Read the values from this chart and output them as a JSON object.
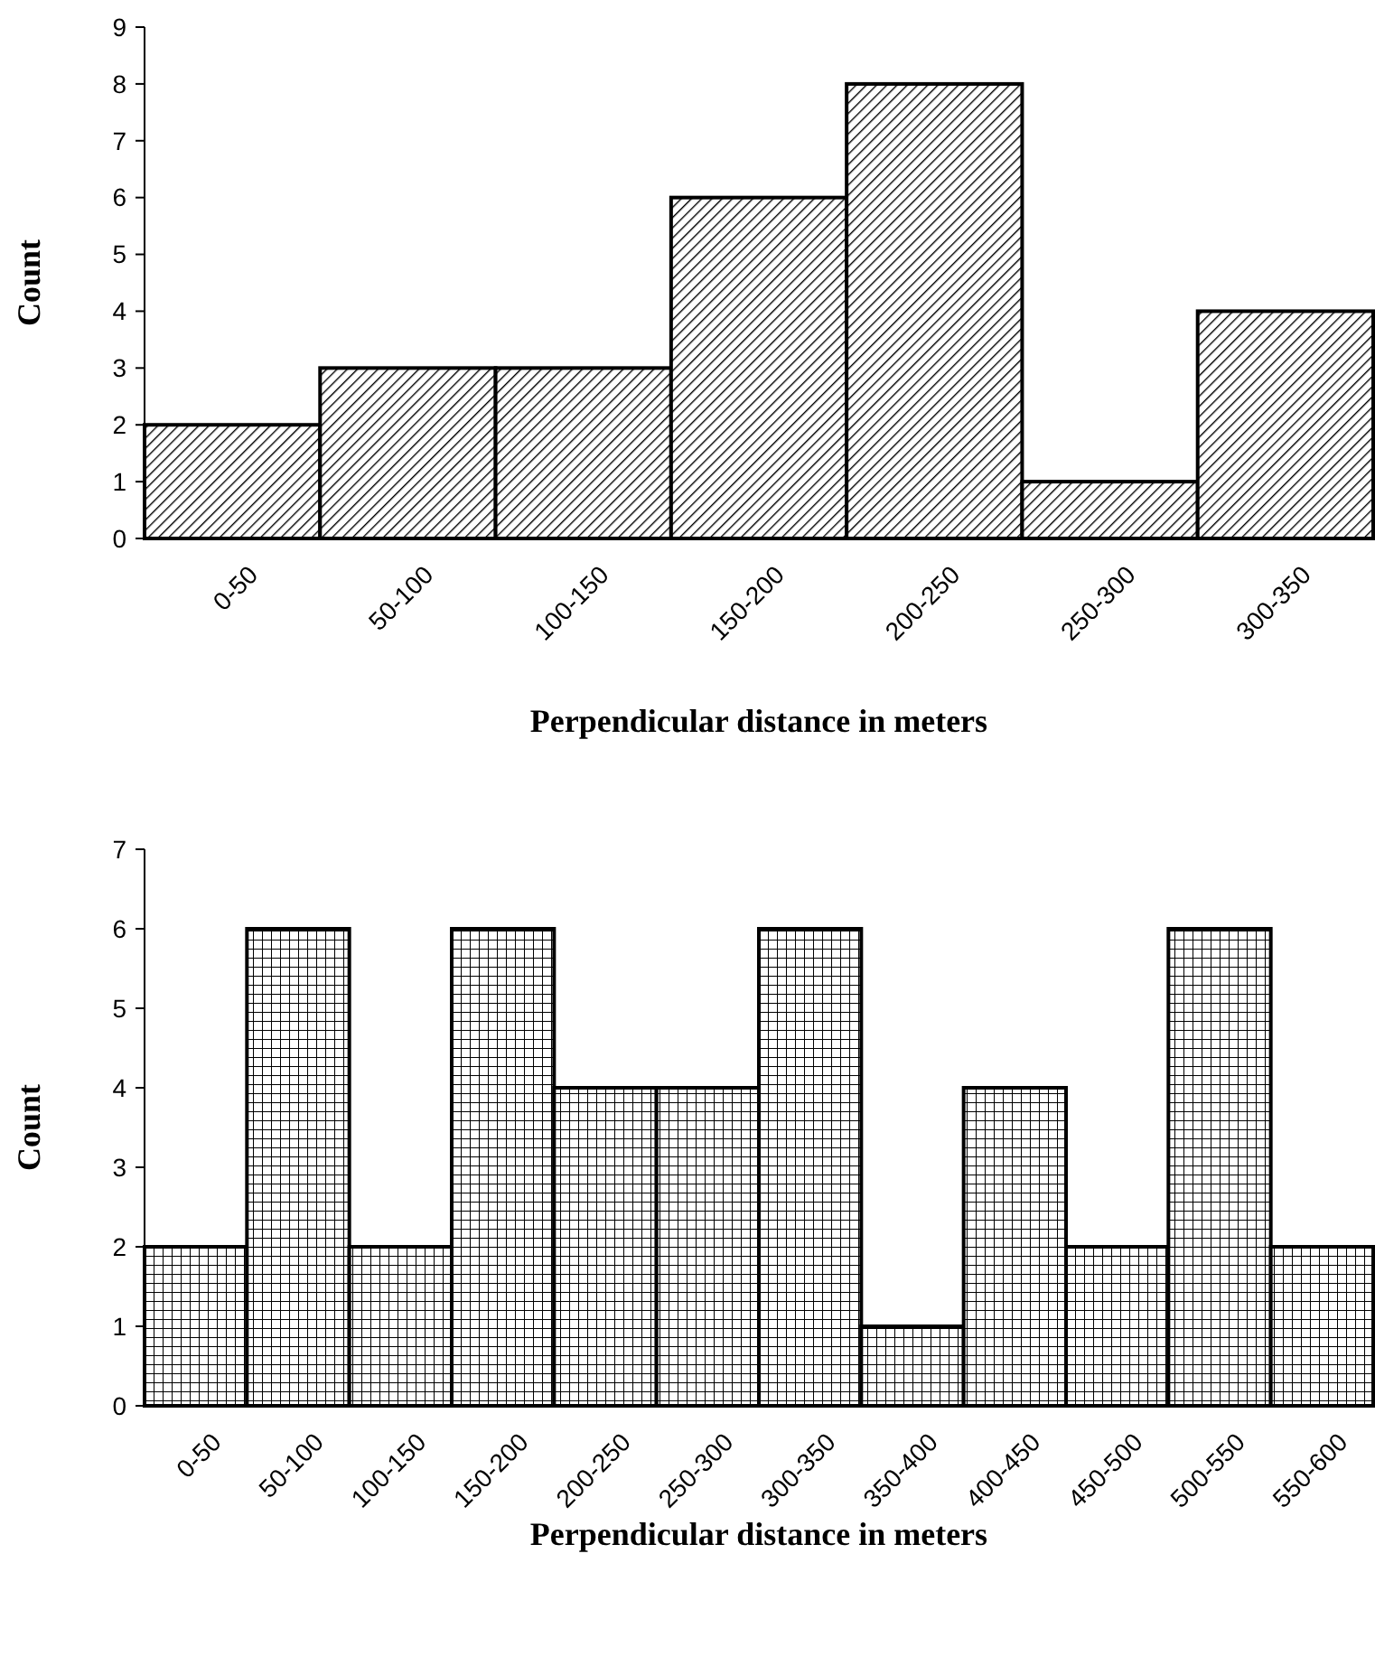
{
  "chart_data": [
    {
      "type": "bar",
      "categories": [
        "0-50",
        "50-100",
        "100-150",
        "150-200",
        "200-250",
        "250-300",
        "300-350"
      ],
      "values": [
        2,
        3,
        3,
        6,
        8,
        1,
        4
      ],
      "color": "#000000",
      "xlabel": "Perpendicular distance in meters",
      "ylabel": "Count",
      "ylim": [
        0,
        9
      ],
      "yticks": [
        0,
        1,
        2,
        3,
        4,
        5,
        6,
        7,
        8,
        9
      ]
    },
    {
      "type": "bar",
      "categories": [
        "0-50",
        "50-100",
        "100-150",
        "150-200",
        "200-250",
        "250-300",
        "300-350",
        "350-400",
        "400-450",
        "450-500",
        "500-550",
        "550-600"
      ],
      "values": [
        2,
        6,
        2,
        6,
        4,
        4,
        6,
        1,
        4,
        2,
        6,
        2
      ],
      "color": "#000000",
      "xlabel": "Perpendicular distance in meters",
      "ylabel": "Count",
      "ylim": [
        0,
        7
      ],
      "yticks": [
        0,
        1,
        2,
        3,
        4,
        5,
        6,
        7
      ]
    }
  ]
}
